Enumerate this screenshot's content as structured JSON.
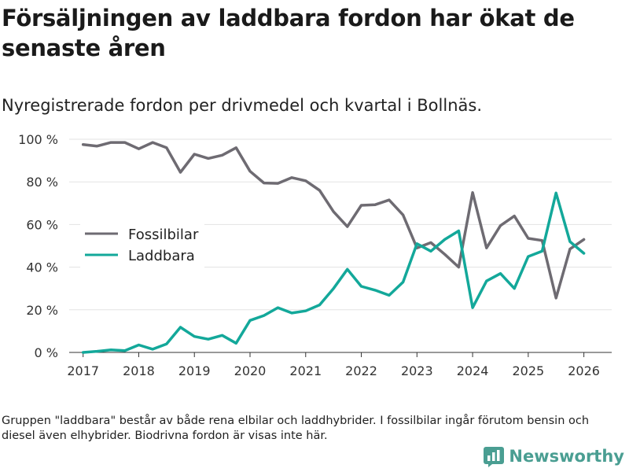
{
  "title": "Försäljningen av laddbara fordon har ökat de senaste åren",
  "subtitle": "Nyregistrerade fordon per drivmedel och kvartal i Bollnäs.",
  "note": "Gruppen \"laddbara\" består av både rena elbilar och laddhybrider. I fossilbilar ingår förutom bensin och diesel även elhybrider. Biodrivna fordon är visas inte här.",
  "brand": {
    "name": "Newsworthy",
    "logo_icon": "newsworthy-logo-icon"
  },
  "colors": {
    "fossil": "#6e6b72",
    "laddbara": "#13a89a",
    "grid": "#e3e3e3",
    "axis": "#333333",
    "brand": "#4a9e92"
  },
  "chart_data": {
    "type": "line",
    "title": "Försäljningen av laddbara fordon har ökat de senaste åren",
    "subtitle": "Nyregistrerade fordon per drivmedel och kvartal i Bollnäs.",
    "xlabel": "",
    "ylabel": "",
    "x_unit": "quarter (decimal year)",
    "xlim": [
      2016.75,
      2026.5
    ],
    "ylim": [
      0,
      100
    ],
    "x_ticks": [
      2017,
      2018,
      2019,
      2020,
      2021,
      2022,
      2023,
      2024,
      2025,
      2026
    ],
    "x_tick_labels": [
      "2017",
      "2018",
      "2019",
      "2020",
      "2021",
      "2022",
      "2023",
      "2024",
      "2025",
      "2026"
    ],
    "y_ticks": [
      0,
      20,
      40,
      60,
      80,
      100
    ],
    "y_tick_labels": [
      "0 %",
      "20 %",
      "40 %",
      "60 %",
      "80 %",
      "100 %"
    ],
    "grid": true,
    "legend_position": "left-middle",
    "x": [
      2017,
      2017.25,
      2017.5,
      2017.75,
      2018,
      2018.25,
      2018.5,
      2018.75,
      2019,
      2019.25,
      2019.5,
      2019.75,
      2020,
      2020.25,
      2020.5,
      2020.75,
      2021,
      2021.25,
      2021.5,
      2021.75,
      2022,
      2022.25,
      2022.5,
      2022.75,
      2023,
      2023.25,
      2023.5,
      2023.75,
      2024,
      2024.25,
      2024.5,
      2024.75,
      2025,
      2025.25,
      2025.5,
      2025.75,
      2026
    ],
    "series": [
      {
        "name": "Fossilbilar",
        "color": "#6e6b72",
        "values": [
          97.5,
          96.8,
          98.5,
          98.5,
          95.5,
          98.5,
          96,
          84.5,
          93,
          91,
          92.5,
          96,
          85,
          79.5,
          79.3,
          82,
          80.5,
          76,
          66,
          59,
          69,
          69.3,
          71.5,
          64.5,
          49,
          51.5,
          46,
          40,
          75,
          49,
          59.5,
          64,
          53.5,
          52.5,
          25.5,
          48.5,
          53
        ]
      },
      {
        "name": "Laddbara",
        "color": "#13a89a",
        "values": [
          0,
          0.5,
          1.2,
          0.8,
          3.5,
          1.5,
          4,
          11.8,
          7.5,
          6.2,
          8,
          4.3,
          15,
          17.3,
          21,
          18.5,
          19.5,
          22.3,
          30,
          39,
          31,
          29.2,
          26.8,
          33,
          51,
          47.5,
          53,
          57,
          21,
          33.5,
          37,
          30,
          45,
          47.5,
          74.8,
          52,
          46.5
        ]
      }
    ]
  }
}
